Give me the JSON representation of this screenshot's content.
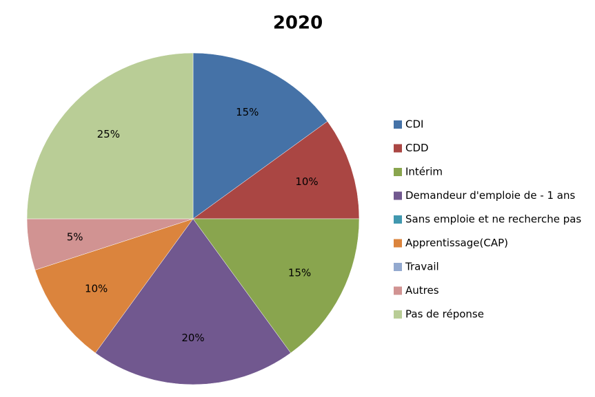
{
  "chart_data": {
    "type": "pie",
    "title": "2020",
    "categories": [
      "CDI",
      "CDD",
      "Intérim",
      "Demandeur d'emploie de - 1 ans",
      "Sans emploie et ne recherche pas",
      "Apprentissage(CAP)",
      "Travail",
      "Autres",
      "Pas de réponse"
    ],
    "values": [
      15,
      10,
      15,
      20,
      0,
      10,
      0,
      5,
      25
    ],
    "value_labels": [
      "15%",
      "10%",
      "15%",
      "20%",
      null,
      "10%",
      null,
      "5%",
      "25%"
    ],
    "colors": [
      "#4572a7",
      "#aa4643",
      "#89a54e",
      "#71588f",
      "#4198af",
      "#db843d",
      "#93a9cf",
      "#d19392",
      "#b9cd96"
    ],
    "legend": "right"
  }
}
